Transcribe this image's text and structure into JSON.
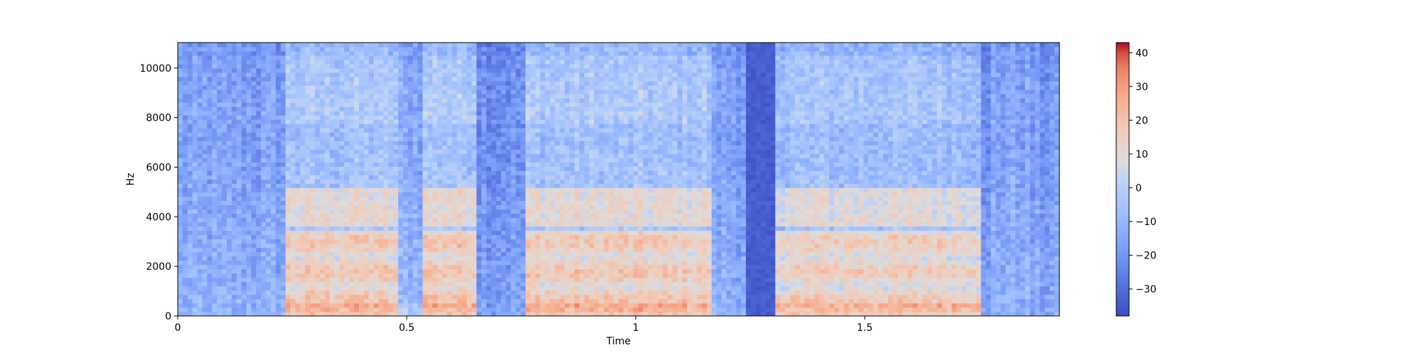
{
  "chart_data": {
    "type": "heatmap",
    "title": "",
    "xlabel": "Time",
    "ylabel": "Hz",
    "xlim": [
      0,
      1.925
    ],
    "ylim": [
      0,
      11025
    ],
    "x_ticks": [
      0,
      0.5,
      1,
      1.5
    ],
    "x_tick_labels": [
      "0",
      "0.5",
      "1",
      "1.5"
    ],
    "y_ticks": [
      0,
      2000,
      4000,
      6000,
      8000,
      10000
    ],
    "y_tick_labels": [
      "0",
      "2000",
      "4000",
      "6000",
      "8000",
      "10000"
    ],
    "colorbar": {
      "colormap": "coolwarm",
      "range": [
        -38,
        43
      ],
      "ticks": [
        40,
        30,
        20,
        10,
        0,
        -10,
        -20,
        -30
      ],
      "tick_labels": [
        "40",
        "30",
        "20",
        "10",
        "0",
        "−10",
        "−20",
        "−30"
      ],
      "low_color": "#3b4cc0",
      "mid_color": "#dddddd",
      "high_color": "#b40426"
    },
    "grid": false,
    "note_values_in_db": true,
    "segments": [
      {
        "t0": 0.0,
        "t1": 0.24,
        "energy": 0.45
      },
      {
        "t0": 0.24,
        "t1": 0.48,
        "energy": 0.85
      },
      {
        "t0": 0.48,
        "t1": 0.53,
        "energy": 0.55
      },
      {
        "t0": 0.53,
        "t1": 0.65,
        "energy": 0.9
      },
      {
        "t0": 0.65,
        "t1": 0.76,
        "energy": 0.3
      },
      {
        "t0": 0.76,
        "t1": 1.17,
        "energy": 0.85
      },
      {
        "t0": 1.17,
        "t1": 1.24,
        "energy": 0.45
      },
      {
        "t0": 1.24,
        "t1": 1.3,
        "energy": 0.15
      },
      {
        "t0": 1.3,
        "t1": 1.75,
        "energy": 0.8
      },
      {
        "t0": 1.75,
        "t1": 1.78,
        "energy": 0.2
      },
      {
        "t0": 1.78,
        "t1": 1.86,
        "energy": 0.5
      },
      {
        "t0": 1.86,
        "t1": 1.925,
        "energy": 0.35
      }
    ]
  }
}
